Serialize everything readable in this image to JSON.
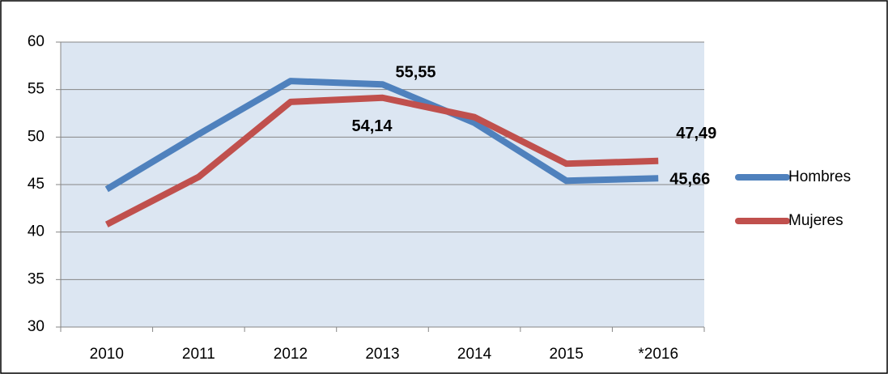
{
  "chart_data": {
    "type": "line",
    "categories": [
      "2010",
      "2011",
      "2012",
      "2013",
      "2014",
      "2015",
      "*2016"
    ],
    "series": [
      {
        "name": "Hombres",
        "color": "#4f81bd",
        "values": [
          44.5,
          50.3,
          55.9,
          55.55,
          51.5,
          45.4,
          45.66
        ],
        "value_labels": [
          null,
          null,
          null,
          "55,55",
          null,
          null,
          "45,66"
        ],
        "label_color": "#1f3050"
      },
      {
        "name": "Mujeres",
        "color": "#c0504d",
        "values": [
          40.8,
          45.8,
          53.7,
          54.14,
          52.1,
          47.2,
          47.49
        ],
        "value_labels": [
          null,
          null,
          null,
          "54,14",
          null,
          null,
          "47,49"
        ],
        "label_color": "#7f1010"
      }
    ],
    "ylim": [
      30,
      60
    ],
    "yticks": [
      30,
      35,
      40,
      45,
      50,
      55,
      60
    ],
    "grid": true,
    "legend": "right"
  }
}
